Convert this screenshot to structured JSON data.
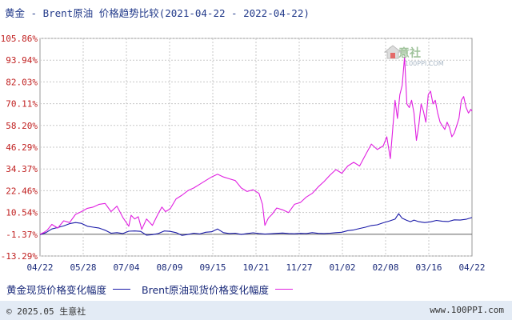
{
  "title": "黄金 - Brent原油 价格趋势比较(2021-04-22 - 2022-04-22)",
  "watermark": {
    "text": "生意社",
    "sub": "100PPI.COM"
  },
  "legend": {
    "gold": "黄金现货价格变化幅度",
    "brent": "Brent原油现货价格变化幅度"
  },
  "footer": {
    "left": "© 2025.05 生意社",
    "right": "www.100PPI.com"
  },
  "colors": {
    "gold": "#1a1aa8",
    "brent": "#e020e0",
    "ytick": "#c02020",
    "xtick": "#1a2a7a",
    "grid": "#c8c8c8",
    "zero": "#707070",
    "footer_bg": "#e3ebf5"
  },
  "chart_data": {
    "type": "line",
    "x_ticks": [
      "04/22",
      "05/28",
      "07/04",
      "08/09",
      "09/15",
      "10/21",
      "11/27",
      "01/02",
      "02/08",
      "03/16",
      "04/22"
    ],
    "y_ticks": [
      "105.86%",
      "93.94%",
      "82.03%",
      "70.11%",
      "58.20%",
      "46.29%",
      "34.37%",
      "22.46%",
      "10.54%",
      "-1.37%",
      "-13.29%"
    ],
    "ylim": [
      -13.29,
      105.86
    ],
    "xlim_days": [
      0,
      365
    ],
    "series": [
      {
        "name": "黄金现货价格变化幅度",
        "x": [
          0,
          5,
          10,
          15,
          20,
          25,
          30,
          35,
          40,
          45,
          50,
          55,
          60,
          65,
          70,
          75,
          80,
          85,
          90,
          95,
          100,
          105,
          110,
          115,
          120,
          125,
          130,
          135,
          140,
          145,
          150,
          155,
          160,
          165,
          170,
          175,
          180,
          185,
          190,
          195,
          200,
          205,
          210,
          215,
          220,
          225,
          230,
          235,
          240,
          245,
          250,
          255,
          260,
          265,
          270,
          275,
          280,
          285,
          290,
          295,
          300,
          303,
          306,
          310,
          313,
          316,
          320,
          325,
          330,
          335,
          340,
          345,
          350,
          355,
          360,
          365
        ],
        "y": [
          -1.6,
          -0.5,
          1.5,
          2.3,
          3.2,
          4.4,
          5.0,
          4.6,
          3.0,
          2.5,
          2.0,
          0.8,
          -0.8,
          -0.5,
          -1.0,
          0.3,
          0.4,
          0.2,
          -1.9,
          -1.6,
          -1.0,
          0.4,
          0.2,
          -0.5,
          -2.0,
          -1.5,
          -0.8,
          -1.2,
          -0.3,
          0.0,
          1.5,
          -0.5,
          -1.0,
          -0.8,
          -1.5,
          -1.0,
          -0.6,
          -1.0,
          -1.3,
          -1.1,
          -0.9,
          -0.7,
          -1.0,
          -1.1,
          -0.9,
          -1.0,
          -0.5,
          -0.9,
          -1.0,
          -0.8,
          -0.5,
          -0.3,
          0.6,
          1.0,
          1.8,
          2.5,
          3.4,
          3.8,
          4.9,
          5.8,
          6.9,
          9.9,
          7.4,
          6.2,
          5.5,
          6.4,
          5.5,
          5.0,
          5.4,
          6.2,
          5.7,
          5.6,
          6.5,
          6.4,
          6.8,
          7.8
        ]
      },
      {
        "name": "Brent原油现货价格变化幅度",
        "x": [
          0,
          3,
          6,
          10,
          15,
          20,
          25,
          30,
          35,
          40,
          45,
          50,
          55,
          60,
          65,
          70,
          75,
          77,
          80,
          83,
          86,
          90,
          95,
          100,
          103,
          106,
          110,
          115,
          120,
          125,
          130,
          135,
          140,
          145,
          150,
          155,
          160,
          165,
          170,
          175,
          180,
          185,
          188,
          190,
          193,
          196,
          200,
          205,
          210,
          215,
          220,
          225,
          230,
          235,
          240,
          245,
          250,
          255,
          260,
          265,
          270,
          275,
          280,
          285,
          290,
          293,
          296,
          300,
          302,
          304,
          306,
          308,
          310,
          312,
          314,
          316,
          318,
          320,
          322,
          324,
          326,
          328,
          330,
          332,
          334,
          336,
          338,
          340,
          342,
          344,
          346,
          348,
          350,
          352,
          354,
          356,
          358,
          360,
          362,
          364,
          365
        ],
        "y": [
          -1.4,
          -0.5,
          0.8,
          4.0,
          2.0,
          6.0,
          5.0,
          9.5,
          11.0,
          12.8,
          13.5,
          15.0,
          15.5,
          11.0,
          14.0,
          7.8,
          3.0,
          9.0,
          7.0,
          8.2,
          1.3,
          7.0,
          3.5,
          10.0,
          13.5,
          11.0,
          12.5,
          18.0,
          20.0,
          22.5,
          24.0,
          26.0,
          28.0,
          30.0,
          31.5,
          30.0,
          29.0,
          28.0,
          24.0,
          22.0,
          23.0,
          21.0,
          15.0,
          3.5,
          7.5,
          9.5,
          13.0,
          12.0,
          10.5,
          15.0,
          16.0,
          19.0,
          21.0,
          24.5,
          27.5,
          31.0,
          34.0,
          32.0,
          36.0,
          38.0,
          36.0,
          42.0,
          48.0,
          45.0,
          47.0,
          52.0,
          40.0,
          72.0,
          62.0,
          75.0,
          80.0,
          95.7,
          70.0,
          68.0,
          72.0,
          65.0,
          50.0,
          58.0,
          70.0,
          66.0,
          60.0,
          75.0,
          77.0,
          70.0,
          72.0,
          65.0,
          60.0,
          58.0,
          56.0,
          60.0,
          57.0,
          52.0,
          54.0,
          58.0,
          62.0,
          72.0,
          74.0,
          68.0,
          65.0,
          67.0,
          66.0
        ]
      }
    ]
  }
}
